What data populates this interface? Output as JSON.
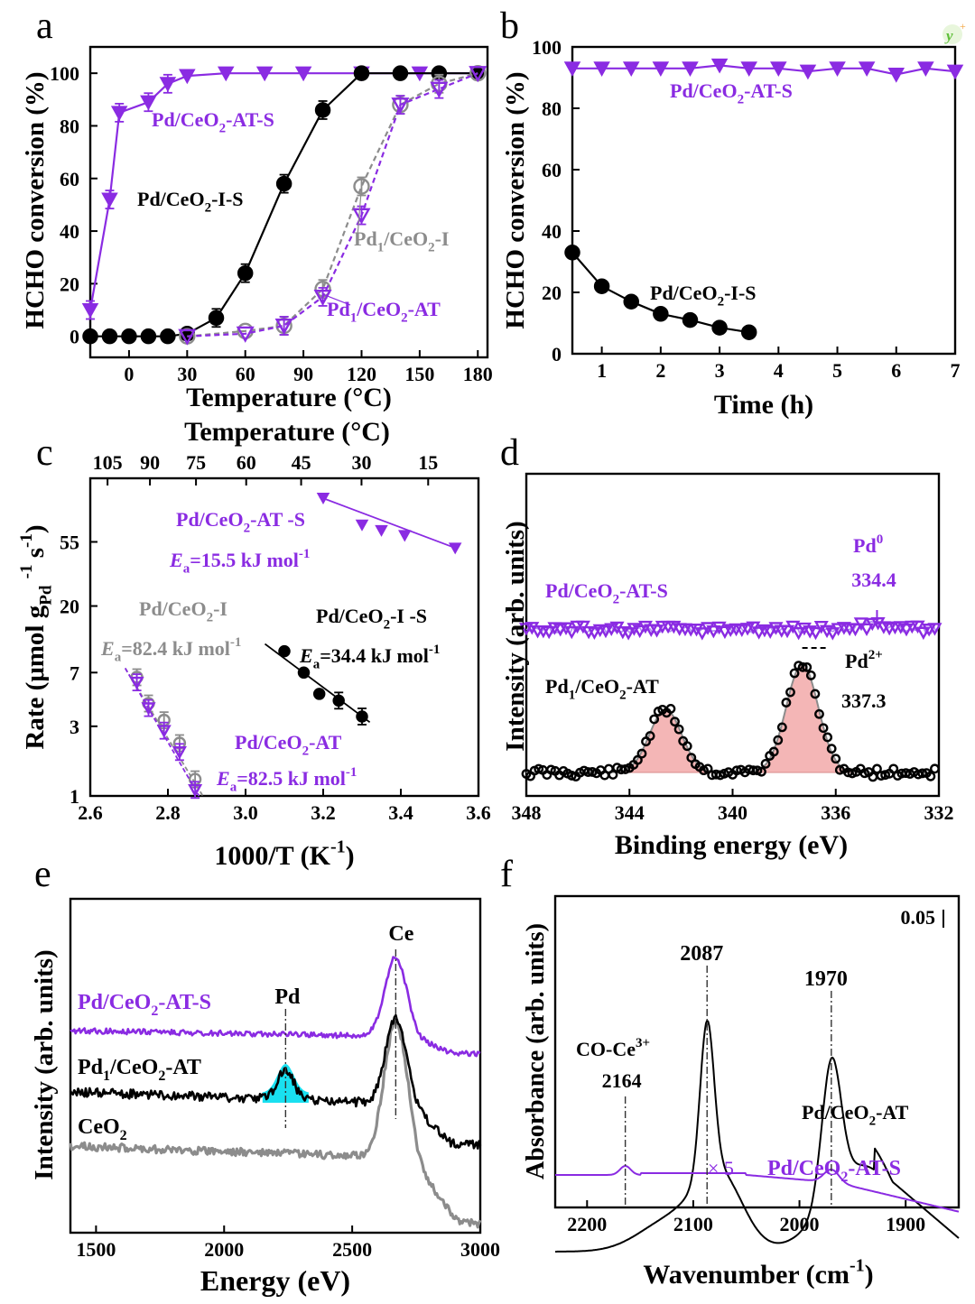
{
  "colors": {
    "purple": "#8a2be2",
    "black": "#000000",
    "gray": "#8c8c8c",
    "fill_pink": "#f4b6b6",
    "fill_cyan": "#19e0f0"
  },
  "chart_data": [
    {
      "panel": "a",
      "type": "line",
      "xlabel": "Temperature (°C)",
      "xlabel2": "Temperature (°C)",
      "ylabel": "HCHO conversion (%)",
      "xlim": [
        -20,
        185
      ],
      "ylim": [
        -8,
        110
      ],
      "xticks": [
        "0",
        "30",
        "60",
        "90",
        "120",
        "150",
        "180"
      ],
      "yticks": [
        "0",
        "20",
        "40",
        "60",
        "80",
        "100"
      ],
      "series": [
        {
          "name": "Pd/CeO2-AT-S",
          "color": "#8a2be2",
          "marker": "tri_down",
          "filled": true,
          "style": "solid",
          "x": [
            -20,
            -10,
            -5,
            10,
            20,
            30,
            50,
            70,
            90,
            120,
            150,
            180
          ],
          "y": [
            10,
            52,
            85,
            89,
            96,
            99,
            100,
            100,
            100,
            100,
            100,
            100
          ]
        },
        {
          "name": "Pd/CeO2-I-S",
          "color": "#000000",
          "marker": "circle",
          "filled": true,
          "style": "solid",
          "x": [
            -20,
            -10,
            0,
            10,
            20,
            30,
            45,
            60,
            80,
            100,
            120,
            140,
            160,
            180
          ],
          "y": [
            0,
            0,
            0,
            0,
            0,
            1,
            7,
            24,
            58,
            86,
            100,
            100,
            100,
            100
          ]
        },
        {
          "name": "Pd1/CeO2-I",
          "color": "#8c8c8c",
          "marker": "circle",
          "filled": false,
          "style": "dashed",
          "x": [
            30,
            60,
            80,
            100,
            120,
            140,
            160,
            180
          ],
          "y": [
            0,
            2,
            4,
            18,
            57,
            88,
            96,
            100
          ]
        },
        {
          "name": "Pd1/CeO2-AT",
          "color": "#8a2be2",
          "marker": "tri_down",
          "filled": false,
          "style": "dashed",
          "x": [
            30,
            60,
            80,
            100,
            120,
            140,
            160,
            180
          ],
          "y": [
            0,
            1,
            4,
            15,
            46,
            88,
            94,
            100
          ]
        }
      ],
      "labels": [
        {
          "runs": [
            [
              "Pd/CeO",
              ""
            ],
            [
              "2",
              "sub"
            ],
            [
              "-AT-S",
              ""
            ]
          ],
          "color": "#8a2be2"
        },
        {
          "runs": [
            [
              "Pd/CeO",
              ""
            ],
            [
              "2",
              "sub"
            ],
            [
              "-I-S",
              ""
            ]
          ],
          "color": "#000000"
        },
        {
          "runs": [
            [
              "Pd",
              ""
            ],
            [
              "1",
              "sub"
            ],
            [
              "/CeO",
              ""
            ],
            [
              "2",
              "sub"
            ],
            [
              "-I",
              ""
            ]
          ],
          "color": "#8c8c8c"
        },
        {
          "runs": [
            [
              "Pd",
              ""
            ],
            [
              "1",
              "sub"
            ],
            [
              "/CeO",
              ""
            ],
            [
              "2",
              "sub"
            ],
            [
              "-AT",
              ""
            ]
          ],
          "color": "#8a2be2"
        }
      ]
    },
    {
      "panel": "b",
      "type": "line",
      "xlabel": "Time (h)",
      "ylabel": "HCHO conversion (%)",
      "xlim": [
        0.5,
        7
      ],
      "ylim": [
        0,
        100
      ],
      "xticks": [
        "1",
        "2",
        "3",
        "4",
        "5",
        "6",
        "7"
      ],
      "yticks": [
        "0",
        "20",
        "40",
        "60",
        "80",
        "100"
      ],
      "series": [
        {
          "name": "Pd/CeO2-AT-S",
          "color": "#8a2be2",
          "marker": "tri_down",
          "filled": true,
          "style": "solid",
          "x": [
            0.5,
            1,
            1.5,
            2,
            2.5,
            3,
            3.5,
            4,
            4.5,
            5,
            5.5,
            6,
            6.5,
            7
          ],
          "y": [
            93,
            93,
            93,
            93,
            93,
            94,
            93,
            93,
            92,
            93,
            93,
            91,
            93,
            92
          ]
        },
        {
          "name": "Pd/CeO2-I-S",
          "color": "#000000",
          "marker": "circle",
          "filled": true,
          "style": "solid",
          "x": [
            0.5,
            1,
            1.5,
            2,
            2.5,
            3,
            3.5
          ],
          "y": [
            33,
            22,
            17,
            13,
            11,
            8.5,
            7
          ]
        }
      ],
      "labels": [
        {
          "runs": [
            [
              "Pd/CeO",
              ""
            ],
            [
              "2",
              "sub"
            ],
            [
              "-AT-S",
              ""
            ]
          ],
          "color": "#8a2be2"
        },
        {
          "runs": [
            [
              "Pd/CeO",
              ""
            ],
            [
              "2",
              "sub"
            ],
            [
              "-I-S",
              ""
            ]
          ],
          "color": "#000000"
        }
      ]
    },
    {
      "panel": "c",
      "type": "scatter",
      "xlabel": "1000/T (K-1)",
      "ylabel": "Rate (μmol gPd-1 s-1)",
      "yscale": "log",
      "xlim": [
        2.6,
        3.6
      ],
      "ylim": [
        1,
        150
      ],
      "xticks": [
        "2.6",
        "2.8",
        "3.0",
        "3.2",
        "3.4",
        "3.6"
      ],
      "yticks": [
        "1",
        "3",
        "7",
        "20",
        "55"
      ],
      "top_ticks": [
        "105",
        "90",
        "75",
        "60",
        "45",
        "30",
        "15"
      ],
      "series": [
        {
          "name": "Pd/CeO2-AT-S",
          "color": "#8a2be2",
          "marker": "tri_down",
          "filled": true,
          "x": [
            3.2,
            3.3,
            3.35,
            3.41,
            3.54
          ],
          "y": [
            110,
            72,
            66,
            61,
            50
          ],
          "fit_x": [
            3.19,
            3.54
          ],
          "fit_y": [
            112,
            50
          ]
        },
        {
          "name": "Pd/CeO2-I-S",
          "color": "#000000",
          "marker": "circle",
          "filled": true,
          "x": [
            3.1,
            3.15,
            3.19,
            3.24,
            3.3
          ],
          "y": [
            9.8,
            7.0,
            5.0,
            4.5,
            3.5
          ],
          "fit_x": [
            3.05,
            3.32
          ],
          "fit_y": [
            11,
            3.2
          ]
        },
        {
          "name": "Pd1/CeO2-I",
          "color": "#8c8c8c",
          "marker": "circle",
          "filled": false,
          "x": [
            2.72,
            2.75,
            2.79,
            2.83,
            2.87
          ],
          "y": [
            6.5,
            4.3,
            3.3,
            2.3,
            1.3
          ],
          "fit_x": [
            2.69,
            2.89
          ],
          "fit_y": [
            7.5,
            1.0
          ]
        },
        {
          "name": "Pd1/CeO2-AT",
          "color": "#8a2be2",
          "marker": "tri_down",
          "filled": false,
          "x": [
            2.72,
            2.75,
            2.79,
            2.83,
            2.87
          ],
          "y": [
            6.0,
            4.0,
            2.8,
            2.0,
            1.1
          ],
          "fit_x": [
            2.69,
            2.88
          ],
          "fit_y": [
            7.5,
            1.0
          ]
        }
      ],
      "labels": [
        {
          "runs": [
            [
              "Pd/CeO",
              ""
            ],
            [
              "2",
              "sub"
            ],
            [
              "-AT -S",
              ""
            ]
          ],
          "color": "#8a2be2"
        },
        {
          "runs": [
            [
              "E",
              "i"
            ],
            [
              "a",
              "sub"
            ],
            [
              "=15.5 kJ mol",
              ""
            ],
            [
              "-1",
              "sup"
            ]
          ],
          "color": "#8a2be2"
        },
        {
          "runs": [
            [
              "Pd/CeO",
              ""
            ],
            [
              "2",
              "sub"
            ],
            [
              "-I",
              ""
            ]
          ],
          "color": "#8c8c8c"
        },
        {
          "runs": [
            [
              "E",
              "i"
            ],
            [
              "a",
              "sub"
            ],
            [
              "=82.4 kJ mol",
              ""
            ],
            [
              "-1",
              "sup"
            ]
          ],
          "color": "#8c8c8c"
        },
        {
          "runs": [
            [
              "Pd/CeO",
              ""
            ],
            [
              "2",
              "sub"
            ],
            [
              "-I -S",
              ""
            ]
          ],
          "color": "#000000"
        },
        {
          "runs": [
            [
              "E",
              "i"
            ],
            [
              "a",
              "sub"
            ],
            [
              "=34.4 kJ mol",
              ""
            ],
            [
              "-1",
              "sup"
            ]
          ],
          "color": "#000000"
        },
        {
          "runs": [
            [
              "Pd/CeO",
              ""
            ],
            [
              "2",
              "sub"
            ],
            [
              "-AT",
              ""
            ]
          ],
          "color": "#8a2be2"
        },
        {
          "runs": [
            [
              "E",
              "i"
            ],
            [
              "a",
              "sub"
            ],
            [
              "=82.5 kJ mol",
              ""
            ],
            [
              "-1",
              "sup"
            ]
          ],
          "color": "#8a2be2"
        }
      ]
    },
    {
      "panel": "d",
      "type": "line",
      "xlabel": "Binding energy (eV)",
      "ylabel": "Intensity (arb. units)",
      "xlim": [
        348,
        332
      ],
      "ylim": [
        0,
        1
      ],
      "xticks": [
        "348",
        "344",
        "340",
        "336",
        "332"
      ],
      "peaks": {
        "Pd0": 334.4,
        "Pd2+": 337.3,
        "satellite": 342.6
      },
      "labels": [
        {
          "runs": [
            [
              "Pd/CeO",
              ""
            ],
            [
              "2",
              "sub"
            ],
            [
              "-AT-S",
              ""
            ]
          ],
          "color": "#8a2be2"
        },
        {
          "runs": [
            [
              "Pd",
              ""
            ],
            [
              "0",
              "sup"
            ]
          ],
          "color": "#8a2be2"
        },
        {
          "runs": [
            [
              "334.4",
              ""
            ]
          ],
          "color": "#8a2be2"
        },
        {
          "runs": [
            [
              "Pd",
              ""
            ],
            [
              "1",
              "sub"
            ],
            [
              "/CeO",
              ""
            ],
            [
              "2",
              "sub"
            ],
            [
              "-AT",
              ""
            ]
          ],
          "color": "#000000"
        },
        {
          "runs": [
            [
              "Pd",
              ""
            ],
            [
              "2+",
              "sup"
            ]
          ],
          "color": "#000000"
        },
        {
          "runs": [
            [
              "337.3",
              ""
            ]
          ],
          "color": "#000000"
        }
      ]
    },
    {
      "panel": "e",
      "type": "line",
      "xlabel": "Energy (eV)",
      "ylabel": "Intensity (arb. units)",
      "xlim": [
        1400,
        3000
      ],
      "ylim": [
        0,
        1
      ],
      "xticks": [
        "1500",
        "2000",
        "2500",
        "3000"
      ],
      "peaks": {
        "Pd": 2240,
        "Ce": 2670
      },
      "labels": [
        {
          "runs": [
            [
              "Pd/CeO",
              ""
            ],
            [
              "2",
              "sub"
            ],
            [
              "-AT-S",
              ""
            ]
          ],
          "color": "#8a2be2"
        },
        {
          "runs": [
            [
              "Pd",
              ""
            ],
            [
              "1",
              "sub"
            ],
            [
              "/CeO",
              ""
            ],
            [
              "2",
              "sub"
            ],
            [
              "-AT",
              ""
            ]
          ],
          "color": "#000000"
        },
        {
          "runs": [
            [
              "CeO",
              ""
            ],
            [
              "2",
              "sub"
            ]
          ],
          "color": "#000000"
        },
        {
          "runs": [
            [
              "Pd",
              ""
            ]
          ],
          "color": "#000000"
        },
        {
          "runs": [
            [
              "Ce",
              ""
            ]
          ],
          "color": "#000000"
        }
      ]
    },
    {
      "panel": "f",
      "type": "line",
      "xlabel": "Wavenumber (cm-1)",
      "ylabel": "Absorbance (arb. units)",
      "xlim": [
        2230,
        1850
      ],
      "ylim": [
        0,
        1
      ],
      "xticks": [
        "2200",
        "2100",
        "2000",
        "1900"
      ],
      "peaks": {
        "CO-Ce3+": 2164,
        "linear": 2087,
        "bridged": 1970
      },
      "scale_bar": "0.05",
      "labels": [
        {
          "runs": [
            [
              "CO-Ce",
              ""
            ],
            [
              "3+",
              "sup"
            ]
          ],
          "color": "#000000"
        },
        {
          "runs": [
            [
              "2164",
              ""
            ]
          ],
          "color": "#000000"
        },
        {
          "runs": [
            [
              "2087",
              ""
            ]
          ],
          "color": "#000000"
        },
        {
          "runs": [
            [
              "1970",
              ""
            ]
          ],
          "color": "#000000"
        },
        {
          "runs": [
            [
              "Pd/CeO",
              ""
            ],
            [
              "2",
              "sub"
            ],
            [
              "-AT",
              ""
            ]
          ],
          "color": "#000000"
        },
        {
          "runs": [
            [
              "Pd/CeO",
              ""
            ],
            [
              "2",
              "sub"
            ],
            [
              "-AT-S",
              ""
            ]
          ],
          "color": "#8a2be2"
        },
        {
          "runs": [
            [
              "× 5",
              ""
            ]
          ],
          "color": "#8a2be2"
        }
      ]
    }
  ]
}
